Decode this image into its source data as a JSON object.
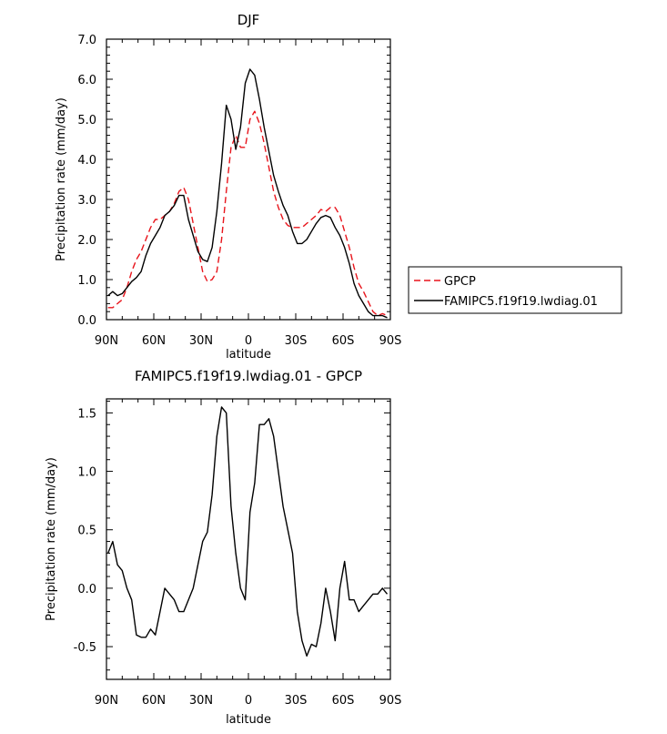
{
  "chart_data": [
    {
      "type": "line",
      "title": "DJF",
      "xlabel": "latitude",
      "ylabel": "Precipitation rate (mm/day)",
      "xlim": [
        90,
        -90
      ],
      "ylim": [
        0,
        7
      ],
      "x_ticks": [
        90,
        60,
        30,
        0,
        -30,
        -60,
        -90
      ],
      "x_tick_labels": [
        "90N",
        "60N",
        "30N",
        "0",
        "30S",
        "60S",
        "90S"
      ],
      "y_ticks": [
        0,
        1,
        2,
        3,
        4,
        5,
        6,
        7
      ],
      "y_tick_labels": [
        "0.0",
        "1.0",
        "2.0",
        "3.0",
        "4.0",
        "5.0",
        "6.0",
        "7.0"
      ],
      "legend_position": "right",
      "series": [
        {
          "name": "GPCP",
          "color": "#e8141b",
          "dash": "dashed",
          "x": [
            89,
            86,
            83,
            80,
            77,
            74,
            71,
            68,
            65,
            62,
            59,
            56,
            53,
            50,
            47,
            44,
            41,
            38,
            35,
            32,
            29,
            26,
            23,
            20,
            17,
            14,
            11,
            8,
            5,
            2,
            -1,
            -4,
            -7,
            -10,
            -13,
            -16,
            -19,
            -22,
            -25,
            -28,
            -31,
            -34,
            -37,
            -40,
            -43,
            -46,
            -49,
            -52,
            -55,
            -58,
            -61,
            -64,
            -67,
            -70,
            -73,
            -76,
            -79,
            -82,
            -85,
            -88
          ],
          "y": [
            0.3,
            0.3,
            0.4,
            0.5,
            0.8,
            1.2,
            1.5,
            1.7,
            2.0,
            2.3,
            2.5,
            2.5,
            2.6,
            2.7,
            2.9,
            3.2,
            3.3,
            3.0,
            2.4,
            1.8,
            1.2,
            0.95,
            1.0,
            1.2,
            2.0,
            3.2,
            4.3,
            4.6,
            4.3,
            4.3,
            5.0,
            5.2,
            4.9,
            4.4,
            3.8,
            3.2,
            2.8,
            2.5,
            2.35,
            2.3,
            2.3,
            2.3,
            2.4,
            2.5,
            2.6,
            2.75,
            2.7,
            2.8,
            2.8,
            2.6,
            2.2,
            1.8,
            1.3,
            0.9,
            0.7,
            0.45,
            0.2,
            0.1,
            0.15,
            0.1
          ]
        },
        {
          "name": "FAMIPC5.f19f19.lwdiag.01",
          "color": "#000000",
          "dash": "solid",
          "x": [
            89,
            86,
            83,
            80,
            77,
            74,
            71,
            68,
            65,
            62,
            59,
            56,
            53,
            50,
            47,
            44,
            41,
            38,
            35,
            32,
            29,
            26,
            23,
            20,
            17,
            14,
            11,
            8,
            5,
            2,
            -1,
            -4,
            -7,
            -10,
            -13,
            -16,
            -19,
            -22,
            -25,
            -28,
            -31,
            -34,
            -37,
            -40,
            -43,
            -46,
            -49,
            -52,
            -55,
            -58,
            -61,
            -64,
            -67,
            -70,
            -73,
            -76,
            -79,
            -82,
            -85,
            -88
          ],
          "y": [
            0.6,
            0.7,
            0.6,
            0.65,
            0.8,
            0.95,
            1.05,
            1.2,
            1.6,
            1.9,
            2.1,
            2.3,
            2.6,
            2.7,
            2.85,
            3.1,
            3.1,
            2.5,
            2.1,
            1.7,
            1.5,
            1.45,
            1.8,
            2.7,
            3.9,
            5.35,
            5.0,
            4.25,
            4.8,
            5.9,
            6.25,
            6.1,
            5.5,
            4.8,
            4.2,
            3.6,
            3.2,
            2.85,
            2.6,
            2.2,
            1.9,
            1.9,
            2.0,
            2.2,
            2.4,
            2.55,
            2.6,
            2.55,
            2.3,
            2.1,
            1.8,
            1.4,
            0.9,
            0.6,
            0.4,
            0.2,
            0.1,
            0.1,
            0.1,
            0.05
          ]
        }
      ]
    },
    {
      "type": "line",
      "title": "FAMIPC5.f19f19.lwdiag.01 - GPCP",
      "xlabel": "latitude",
      "ylabel": "Precipitation rate (mm/day)",
      "xlim": [
        90,
        -90
      ],
      "ylim": [
        -0.78,
        1.62
      ],
      "x_ticks": [
        90,
        60,
        30,
        0,
        -30,
        -60,
        -90
      ],
      "x_tick_labels": [
        "90N",
        "60N",
        "30N",
        "0",
        "30S",
        "60S",
        "90S"
      ],
      "y_ticks": [
        -0.5,
        0,
        0.5,
        1.0,
        1.5
      ],
      "y_tick_labels": [
        "-0.5",
        "0.0",
        "0.5",
        "1.0",
        "1.5"
      ],
      "series": [
        {
          "color": "#000000",
          "dash": "solid",
          "x": [
            89,
            86,
            83,
            80,
            77,
            74,
            71,
            68,
            65,
            62,
            59,
            56,
            53,
            50,
            47,
            44,
            41,
            38,
            35,
            32,
            29,
            26,
            23,
            20,
            17,
            14,
            11,
            8,
            5,
            2,
            -1,
            -4,
            -7,
            -10,
            -13,
            -16,
            -19,
            -22,
            -25,
            -28,
            -31,
            -34,
            -37,
            -40,
            -43,
            -46,
            -49,
            -52,
            -55,
            -58,
            -61,
            -64,
            -67,
            -70,
            -73,
            -76,
            -79,
            -82,
            -85,
            -88
          ],
          "y": [
            0.3,
            0.4,
            0.2,
            0.15,
            0.0,
            -0.1,
            -0.4,
            -0.42,
            -0.42,
            -0.35,
            -0.4,
            -0.2,
            0.0,
            -0.05,
            -0.1,
            -0.2,
            -0.2,
            -0.1,
            0.0,
            0.2,
            0.4,
            0.48,
            0.8,
            1.3,
            1.55,
            1.5,
            0.7,
            0.3,
            0.0,
            -0.1,
            0.65,
            0.9,
            1.4,
            1.4,
            1.45,
            1.3,
            1.0,
            0.7,
            0.5,
            0.3,
            -0.2,
            -0.45,
            -0.58,
            -0.48,
            -0.5,
            -0.3,
            0.0,
            -0.2,
            -0.45,
            0.0,
            0.23,
            -0.1,
            -0.1,
            -0.2,
            -0.15,
            -0.1,
            -0.05,
            -0.05,
            0.0,
            -0.05
          ]
        }
      ]
    }
  ]
}
